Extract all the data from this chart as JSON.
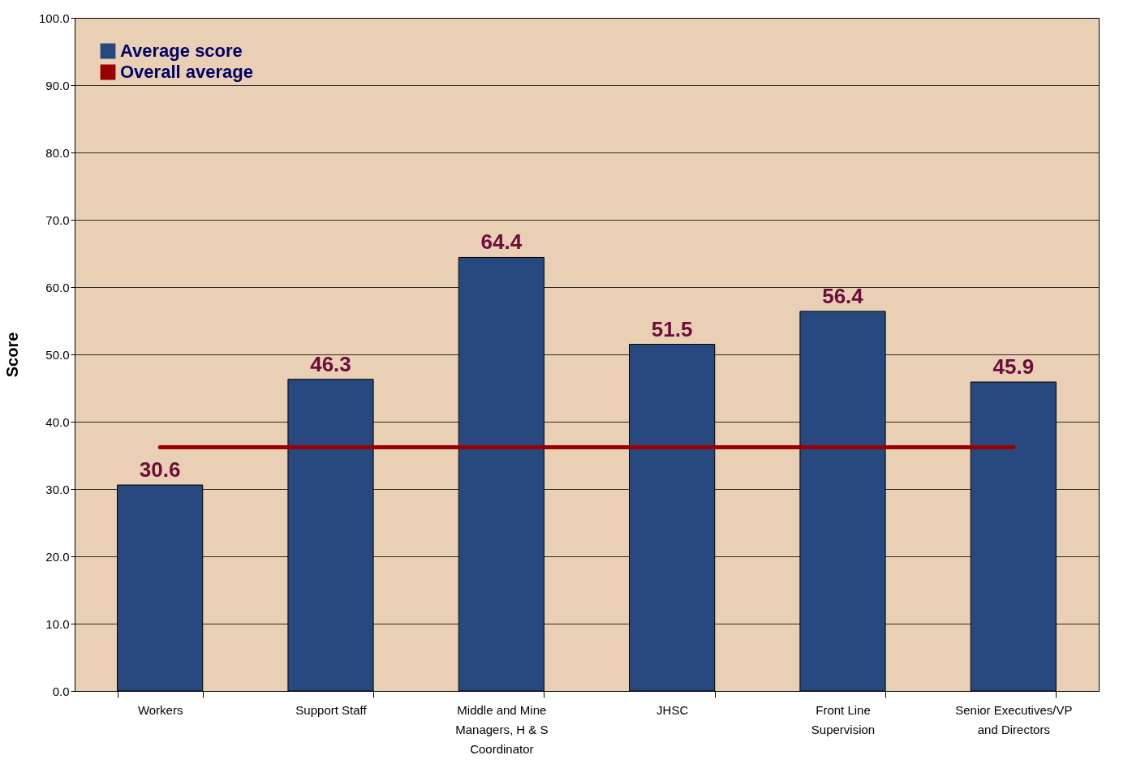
{
  "chart_data": {
    "type": "bar",
    "ylabel": "Score",
    "categories": [
      "Workers",
      "Support Staff",
      "Middle and Mine Managers, H & S Coordinator",
      "JHSC",
      "Front Line Supervision",
      "Senior Executives/VP and Directors"
    ],
    "series": [
      {
        "name": "Average score",
        "color": "#27497f",
        "values": [
          30.6,
          46.3,
          64.4,
          51.5,
          56.4,
          45.9
        ],
        "value_labels": [
          "30.6",
          "46.3",
          "64.4",
          "51.5",
          "56.4",
          "45.9"
        ]
      },
      {
        "name": "Overall average",
        "type": "line",
        "color": "#990000",
        "values": [
          36.2,
          36.2,
          36.2,
          36.2,
          36.2,
          36.2
        ]
      }
    ],
    "ylim": [
      0,
      100
    ],
    "yticks": [
      {
        "value": 0,
        "label": "0.0"
      },
      {
        "value": 10,
        "label": "10.0"
      },
      {
        "value": 20,
        "label": "20.0"
      },
      {
        "value": 30,
        "label": "30.0"
      },
      {
        "value": 40,
        "label": "40.0"
      },
      {
        "value": 50,
        "label": "50.0"
      },
      {
        "value": 60,
        "label": "60.0"
      },
      {
        "value": 70,
        "label": "70.0"
      },
      {
        "value": 80,
        "label": "80.0"
      },
      {
        "value": 90,
        "label": "90.0"
      },
      {
        "value": 100,
        "label": "100.0"
      }
    ],
    "grid": "y",
    "legend": "top left"
  }
}
